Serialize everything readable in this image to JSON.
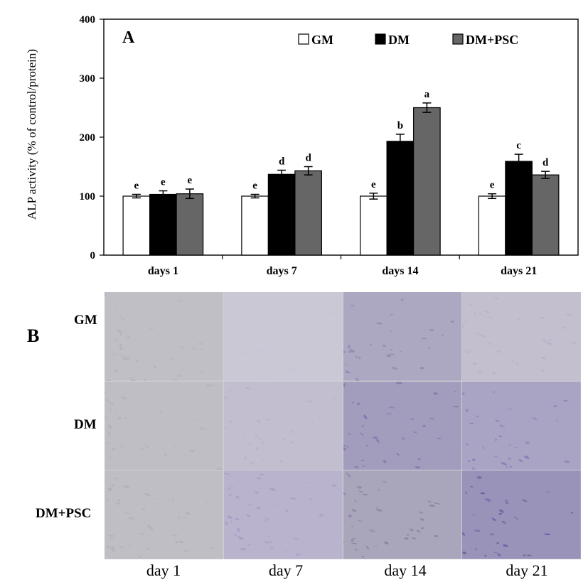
{
  "panel_a": {
    "letter": "A"
  },
  "panel_b": {
    "letter": "B",
    "rows": [
      "GM",
      "DM",
      "DM+PSC"
    ],
    "columns": [
      "day  1",
      "day  7",
      "day  14",
      "day  21"
    ],
    "tile_tints": [
      [
        "#b6b2ba",
        "#c9c2d6",
        "#8f88b2",
        "#b9b2c9"
      ],
      [
        "#b3b1b7",
        "#b9b0cb",
        "#7f74aa",
        "#8a7fb6"
      ],
      [
        "#b2b0b6",
        "#a79cc6",
        "#8b84a6",
        "#6f62a2"
      ]
    ]
  },
  "chart_data": {
    "type": "bar",
    "ylabel": "ALP activity (% of control/protein)",
    "xlabel": "",
    "ylim": [
      0,
      400
    ],
    "yticks": [
      0,
      100,
      200,
      300,
      400
    ],
    "categories": [
      "days 1",
      "days 7",
      "days 14",
      "days 21"
    ],
    "legend_position": "top-right",
    "series": [
      {
        "name": "GM",
        "color": "#ffffff",
        "values": [
          100,
          100,
          100,
          100
        ],
        "errors": [
          3,
          3,
          5,
          4
        ],
        "letters": [
          "e",
          "e",
          "e",
          "e"
        ]
      },
      {
        "name": "DM",
        "color": "#000000",
        "values": [
          103,
          137,
          193,
          159
        ],
        "errors": [
          6,
          7,
          12,
          12
        ],
        "letters": [
          "e",
          "d",
          "b",
          "c"
        ]
      },
      {
        "name": "DM+PSC",
        "color": "#666666",
        "values": [
          104,
          143,
          250,
          136
        ],
        "errors": [
          8,
          7,
          8,
          6
        ],
        "letters": [
          "e",
          "d",
          "a",
          "d"
        ]
      }
    ]
  }
}
